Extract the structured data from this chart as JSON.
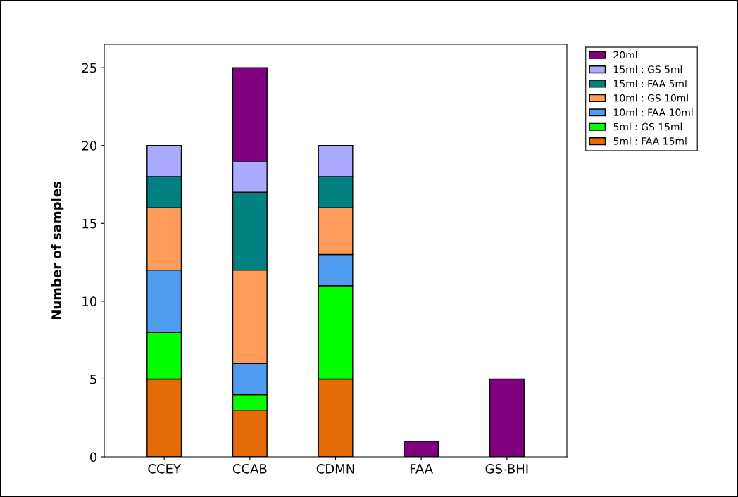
{
  "chart_data": {
    "type": "bar",
    "stacked": true,
    "ylabel": "Number of samples",
    "categories": [
      "CCEY",
      "CCAB",
      "CDMN",
      "FAA",
      "GS-BHI"
    ],
    "series": [
      {
        "name": "5ml : FAA 15ml",
        "color": "#e36c09",
        "values": [
          5,
          3,
          5,
          null,
          null
        ]
      },
      {
        "name": "5ml : GS 15ml",
        "color": "#00ff00",
        "values": [
          3,
          1,
          6,
          null,
          null
        ]
      },
      {
        "name": "10ml : FAA 10ml",
        "color": "#4f9bf0",
        "values": [
          4,
          2,
          2,
          null,
          null
        ]
      },
      {
        "name": "10ml : GS 10ml",
        "color": "#ff9c5c",
        "values": [
          4,
          6,
          3,
          null,
          null
        ]
      },
      {
        "name": "15ml : FAA 5ml",
        "color": "#008080",
        "values": [
          2,
          5,
          2,
          null,
          null
        ]
      },
      {
        "name": "15ml : GS 5ml",
        "color": "#aaaaff",
        "values": [
          2,
          2,
          2,
          null,
          null
        ]
      },
      {
        "name": "20ml",
        "color": "#800080",
        "values": [
          null,
          6,
          null,
          1,
          5
        ]
      }
    ],
    "ylim": [
      0,
      26.5
    ],
    "yticks": [
      0,
      5,
      10,
      15,
      20,
      25
    ],
    "grid": false,
    "legend": "top right"
  }
}
